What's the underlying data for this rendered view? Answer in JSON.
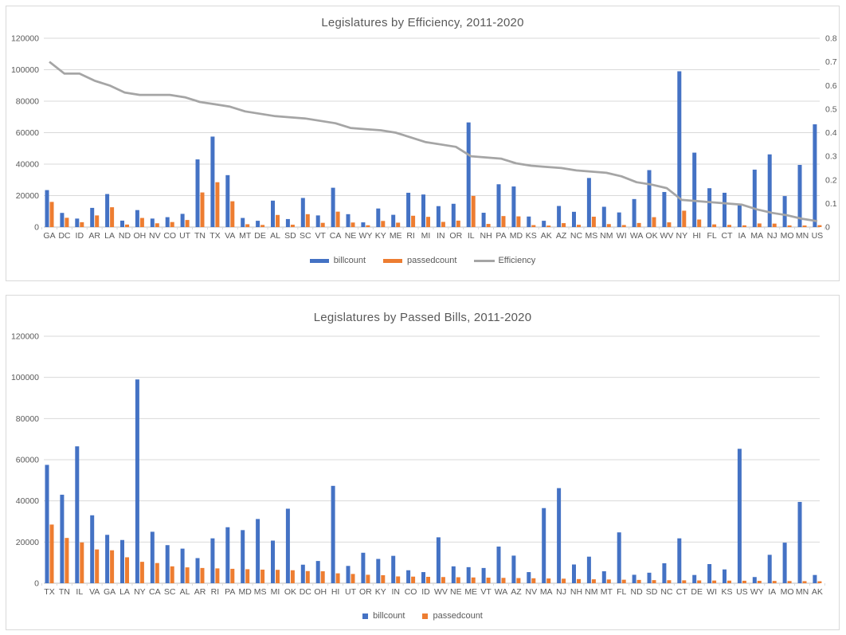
{
  "colors": {
    "billcount": "#4472C4",
    "passedcount": "#ED7D31",
    "efficiency_line": "#A5A5A5",
    "gridline": "#D9D9D9",
    "axis_line": "#BFBFBF",
    "text": "#595959",
    "panel_border": "#D9D9D9",
    "background": "#FFFFFF"
  },
  "chart_data": [
    {
      "id": "efficiency-chart",
      "type": "bar+line",
      "title": "Legislatures by Efficiency, 2011-2020",
      "grid": true,
      "legend_position": "bottom",
      "legend_swatch": "bar",
      "y_left": {
        "min": 0,
        "max": 120000,
        "step": 20000
      },
      "y_right": {
        "min": 0,
        "max": 0.8,
        "step": 0.1
      },
      "categories": [
        "GA",
        "DC",
        "ID",
        "AR",
        "LA",
        "ND",
        "OH",
        "NV",
        "CO",
        "UT",
        "TN",
        "TX",
        "VA",
        "MT",
        "DE",
        "AL",
        "SD",
        "SC",
        "VT",
        "CA",
        "NE",
        "WY",
        "KY",
        "ME",
        "RI",
        "MI",
        "IN",
        "OR",
        "IL",
        "NH",
        "PA",
        "MD",
        "KS",
        "AK",
        "AZ",
        "NC",
        "MS",
        "NM",
        "WI",
        "WA",
        "OK",
        "WV",
        "NY",
        "HI",
        "FL",
        "CT",
        "IA",
        "MA",
        "NJ",
        "MO",
        "MN",
        "US"
      ],
      "series": [
        {
          "name": "billcount",
          "type": "bar",
          "axis": "left",
          "color": "#4472C4",
          "values": [
            23500,
            9000,
            5400,
            12200,
            21000,
            4100,
            10800,
            5400,
            6300,
            8400,
            43000,
            57500,
            33000,
            5800,
            4000,
            16800,
            5100,
            18500,
            7400,
            25000,
            8200,
            3000,
            11800,
            7800,
            21800,
            20700,
            13300,
            14800,
            66500,
            9100,
            27200,
            25800,
            6700,
            4000,
            13400,
            9700,
            31200,
            12900,
            9300,
            17800,
            36200,
            22300,
            99000,
            47300,
            24700,
            21800,
            13800,
            36500,
            46200,
            19700,
            39500,
            65300
          ]
        },
        {
          "name": "passedcount",
          "type": "bar",
          "axis": "left",
          "color": "#ED7D31",
          "values": [
            16000,
            5900,
            3100,
            7400,
            12600,
            1600,
            5800,
            2400,
            3200,
            4500,
            22000,
            28500,
            16400,
            1800,
            1350,
            7700,
            1500,
            8200,
            2700,
            9800,
            2900,
            1150,
            3900,
            2800,
            7200,
            6500,
            3300,
            4100,
            19800,
            2000,
            7000,
            6800,
            1250,
            950,
            2500,
            1450,
            6600,
            1900,
            1300,
            2600,
            6300,
            3000,
            10400,
            4800,
            1700,
            1400,
            1100,
            2300,
            2200,
            1050,
            1000,
            1200
          ]
        },
        {
          "name": "Efficiency",
          "type": "line",
          "axis": "right",
          "color": "#A5A5A5",
          "values": [
            0.7,
            0.65,
            0.65,
            0.62,
            0.6,
            0.57,
            0.56,
            0.56,
            0.56,
            0.55,
            0.53,
            0.52,
            0.51,
            0.49,
            0.48,
            0.47,
            0.465,
            0.46,
            0.45,
            0.44,
            0.42,
            0.415,
            0.41,
            0.4,
            0.38,
            0.36,
            0.35,
            0.34,
            0.3,
            0.295,
            0.29,
            0.27,
            0.26,
            0.255,
            0.25,
            0.24,
            0.235,
            0.23,
            0.215,
            0.19,
            0.18,
            0.165,
            0.115,
            0.11,
            0.105,
            0.1,
            0.095,
            0.075,
            0.06,
            0.05,
            0.035,
            0.025
          ]
        }
      ]
    },
    {
      "id": "passed-bills-chart",
      "type": "bar",
      "title": "Legislatures by Passed Bills, 2011-2020",
      "grid": true,
      "legend_position": "bottom",
      "legend_swatch": "square",
      "y_left": {
        "min": 0,
        "max": 120000,
        "step": 20000
      },
      "categories": [
        "TX",
        "TN",
        "IL",
        "VA",
        "GA",
        "LA",
        "NY",
        "CA",
        "SC",
        "AL",
        "AR",
        "RI",
        "PA",
        "MD",
        "MS",
        "MI",
        "OK",
        "DC",
        "OH",
        "HI",
        "UT",
        "OR",
        "KY",
        "IN",
        "CO",
        "ID",
        "WV",
        "NE",
        "ME",
        "VT",
        "WA",
        "AZ",
        "NV",
        "MA",
        "NJ",
        "NH",
        "NM",
        "MT",
        "FL",
        "ND",
        "SD",
        "NC",
        "CT",
        "DE",
        "WI",
        "KS",
        "US",
        "WY",
        "IA",
        "MO",
        "MN",
        "AK"
      ],
      "series": [
        {
          "name": "billcount",
          "type": "bar",
          "axis": "left",
          "color": "#4472C4",
          "values": [
            57500,
            43000,
            66500,
            33000,
            23500,
            21000,
            99000,
            25000,
            18500,
            16800,
            12200,
            21800,
            27200,
            25800,
            31200,
            20700,
            36200,
            9000,
            10800,
            47300,
            8400,
            14800,
            11800,
            13300,
            6300,
            5400,
            22300,
            8200,
            7800,
            7400,
            17800,
            13400,
            5400,
            36500,
            46200,
            9100,
            12900,
            5800,
            24700,
            4100,
            5100,
            9700,
            21800,
            4000,
            9300,
            6700,
            65300,
            3000,
            13800,
            19700,
            39500,
            4000
          ]
        },
        {
          "name": "passedcount",
          "type": "bar",
          "axis": "left",
          "color": "#ED7D31",
          "values": [
            28500,
            22000,
            19800,
            16400,
            16000,
            12600,
            10400,
            9800,
            8200,
            7700,
            7400,
            7200,
            7000,
            6800,
            6600,
            6500,
            6300,
            5900,
            5800,
            4800,
            4500,
            4100,
            3900,
            3300,
            3200,
            3100,
            3000,
            2900,
            2800,
            2700,
            2600,
            2500,
            2400,
            2300,
            2200,
            2000,
            1900,
            1800,
            1700,
            1600,
            1500,
            1450,
            1400,
            1350,
            1300,
            1250,
            1200,
            1150,
            1100,
            1050,
            1000,
            950
          ]
        }
      ]
    }
  ]
}
